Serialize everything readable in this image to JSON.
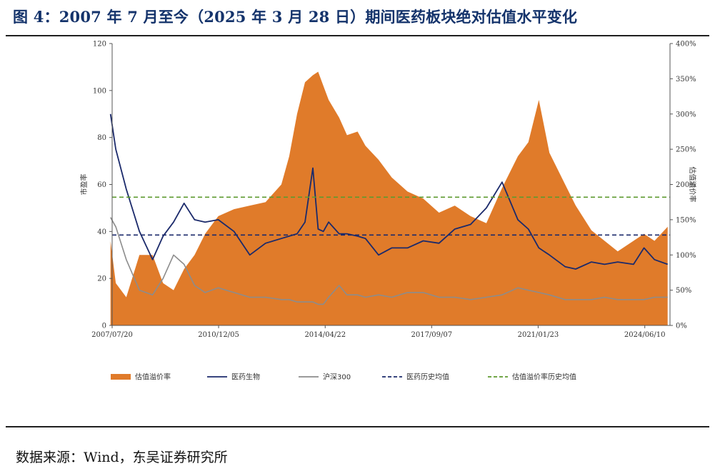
{
  "figure": {
    "title": "图 4：2007 年 7 月至今（2025 年 3 月 28 日）期间医药板块绝对估值水平变化",
    "source": "数据来源：Wind，东吴证券研究所"
  },
  "colors": {
    "premium_fill": "#e07b2a",
    "pharma_line": "#1b2a6b",
    "hs300_line": "#8c8c8c",
    "pharma_mean_line": "#1b2a6b",
    "premium_mean_line": "#5d9a2f"
  },
  "chart_data": {
    "type": "area",
    "title": "",
    "ylabel": "市盈率",
    "y2label": "估值溢价率",
    "ylim": [
      0,
      120
    ],
    "y2lim": [
      0,
      4
    ],
    "yticks": [
      "0",
      "20",
      "40",
      "60",
      "80",
      "100",
      "120"
    ],
    "y2ticks": [
      "0%",
      "50%",
      "100%",
      "150%",
      "200%",
      "250%",
      "300%",
      "350%",
      "400%"
    ],
    "xticks": [
      "2007/07/20",
      "2010/12/05",
      "2014/04/22",
      "2017/09/07",
      "2021/01/23",
      "2024/06/10"
    ],
    "x": [
      "2007/07",
      "2007/09",
      "2008/01",
      "2008/06",
      "2008/11",
      "2009/03",
      "2009/07",
      "2009/11",
      "2010/03",
      "2010/07",
      "2010/12",
      "2011/06",
      "2011/12",
      "2012/06",
      "2012/12",
      "2013/03",
      "2013/06",
      "2013/09",
      "2013/12",
      "2014/02",
      "2014/04",
      "2014/06",
      "2014/10",
      "2015/01",
      "2015/05",
      "2015/08",
      "2016/01",
      "2016/06",
      "2016/12",
      "2017/06",
      "2017/12",
      "2018/06",
      "2018/12",
      "2019/06",
      "2019/12",
      "2020/06",
      "2020/10",
      "2021/02",
      "2021/06",
      "2021/12",
      "2022/04",
      "2022/10",
      "2023/03",
      "2023/08",
      "2024/02",
      "2024/06",
      "2024/10",
      "2025/03"
    ],
    "series": [
      {
        "name": "估值溢价率",
        "axis": "right",
        "values": [
          1.2,
          0.6,
          0.4,
          1.0,
          1.0,
          0.6,
          0.5,
          0.8,
          1.0,
          1.3,
          1.55,
          1.65,
          1.7,
          1.75,
          2.0,
          2.4,
          3.0,
          3.45,
          3.55,
          3.6,
          3.4,
          3.2,
          2.95,
          2.7,
          2.75,
          2.55,
          2.35,
          2.1,
          1.9,
          1.8,
          1.6,
          1.7,
          1.55,
          1.45,
          1.95,
          2.4,
          2.6,
          3.2,
          2.45,
          2.0,
          1.7,
          1.35,
          1.2,
          1.05,
          1.2,
          1.3,
          1.2,
          1.4
        ]
      },
      {
        "name": "医药生物",
        "axis": "left",
        "values": [
          90,
          75,
          58,
          40,
          28,
          38,
          44,
          52,
          45,
          44,
          45,
          40,
          30,
          35,
          37,
          38,
          39,
          44,
          67,
          41,
          40,
          44,
          39,
          39,
          38,
          37,
          30,
          33,
          33,
          36,
          35,
          41,
          43,
          50,
          61,
          45,
          41,
          33,
          30,
          25,
          24,
          27,
          26,
          27,
          26,
          33,
          28,
          26
        ]
      },
      {
        "name": "沪深300",
        "axis": "left",
        "values": [
          46,
          42,
          28,
          15,
          13,
          20,
          30,
          26,
          17,
          14,
          16,
          14,
          12,
          12,
          11,
          11,
          10,
          10,
          10,
          9,
          9,
          12,
          17,
          13,
          13,
          12,
          13,
          12,
          14,
          14,
          12,
          12,
          11,
          12,
          13,
          16,
          15,
          14,
          13,
          11,
          11,
          11,
          12,
          11,
          11,
          11,
          12,
          12
        ]
      }
    ],
    "reference_lines": [
      {
        "name": "医药历史均值",
        "axis": "left",
        "value": 38.5
      },
      {
        "name": "估值溢价率历史均值",
        "axis": "right",
        "value": 1.82
      }
    ],
    "legend_position": "bottom",
    "grid": false
  }
}
